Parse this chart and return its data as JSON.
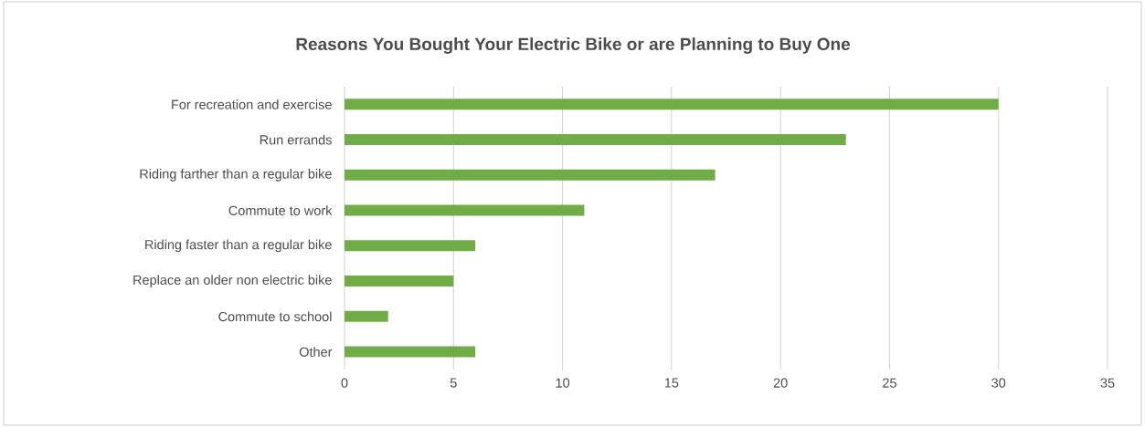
{
  "chart_data": {
    "type": "bar",
    "orientation": "horizontal",
    "title": "Reasons You Bought Your Electric Bike or are Planning to Buy One",
    "categories": [
      "For recreation and exercise",
      "Run errands",
      "Riding farther than a regular bike",
      "Commute to work",
      "Riding faster than a regular bike",
      "Replace an older non electric bike",
      "Commute to school",
      "Other"
    ],
    "values": [
      30,
      23,
      17,
      11,
      6,
      5,
      2,
      6
    ],
    "color": "#70ad47",
    "xlim": [
      0,
      35
    ],
    "xticks": [
      0,
      5,
      10,
      15,
      20,
      25,
      30,
      35
    ],
    "grid": "x"
  }
}
